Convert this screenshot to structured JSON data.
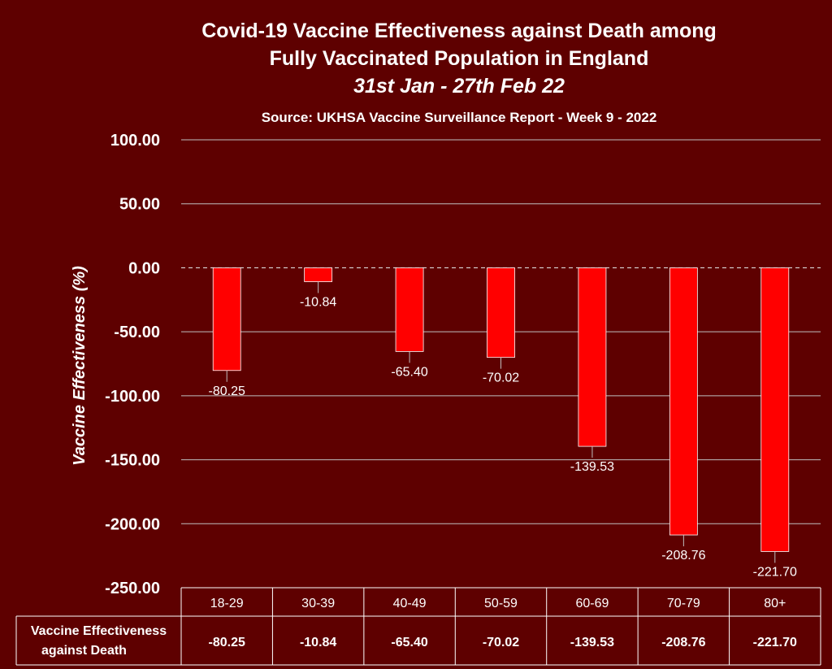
{
  "chart_data": {
    "type": "bar",
    "title_line1": "Covid-19 Vaccine Effectiveness against Death among",
    "title_line2": "Fully Vaccinated Population in England",
    "subtitle": "31st Jan - 27th Feb 22",
    "source": "Source: UKHSA Vaccine Surveillance Report - Week 9 - 2022",
    "ylabel": "Vaccine Effectiveness (%)",
    "ylim": [
      -250,
      100
    ],
    "yticks": [
      100,
      50,
      0,
      -50,
      -100,
      -150,
      -200,
      -250
    ],
    "ytick_labels": [
      "100.00",
      "50.00",
      "0.00",
      "-50.00",
      "-100.00",
      "-150.00",
      "-200.00",
      "-250.00"
    ],
    "grid": true,
    "bar_color": "#ff0000",
    "categories": [
      "18-29",
      "30-39",
      "40-49",
      "50-59",
      "60-69",
      "70-79",
      "80+"
    ],
    "series": [
      {
        "name": "Vaccine Effectiveness against Death",
        "values": [
          -80.25,
          -10.84,
          -65.4,
          -70.02,
          -139.53,
          -208.76,
          -221.7
        ],
        "labels": [
          "-80.25",
          "-10.84",
          "-65.40",
          "-70.02",
          "-139.53",
          "-208.76",
          "-221.70"
        ]
      }
    ],
    "data_table": {
      "row_header_line1": "Vaccine Effectiveness",
      "row_header_line2": "against Death"
    }
  }
}
